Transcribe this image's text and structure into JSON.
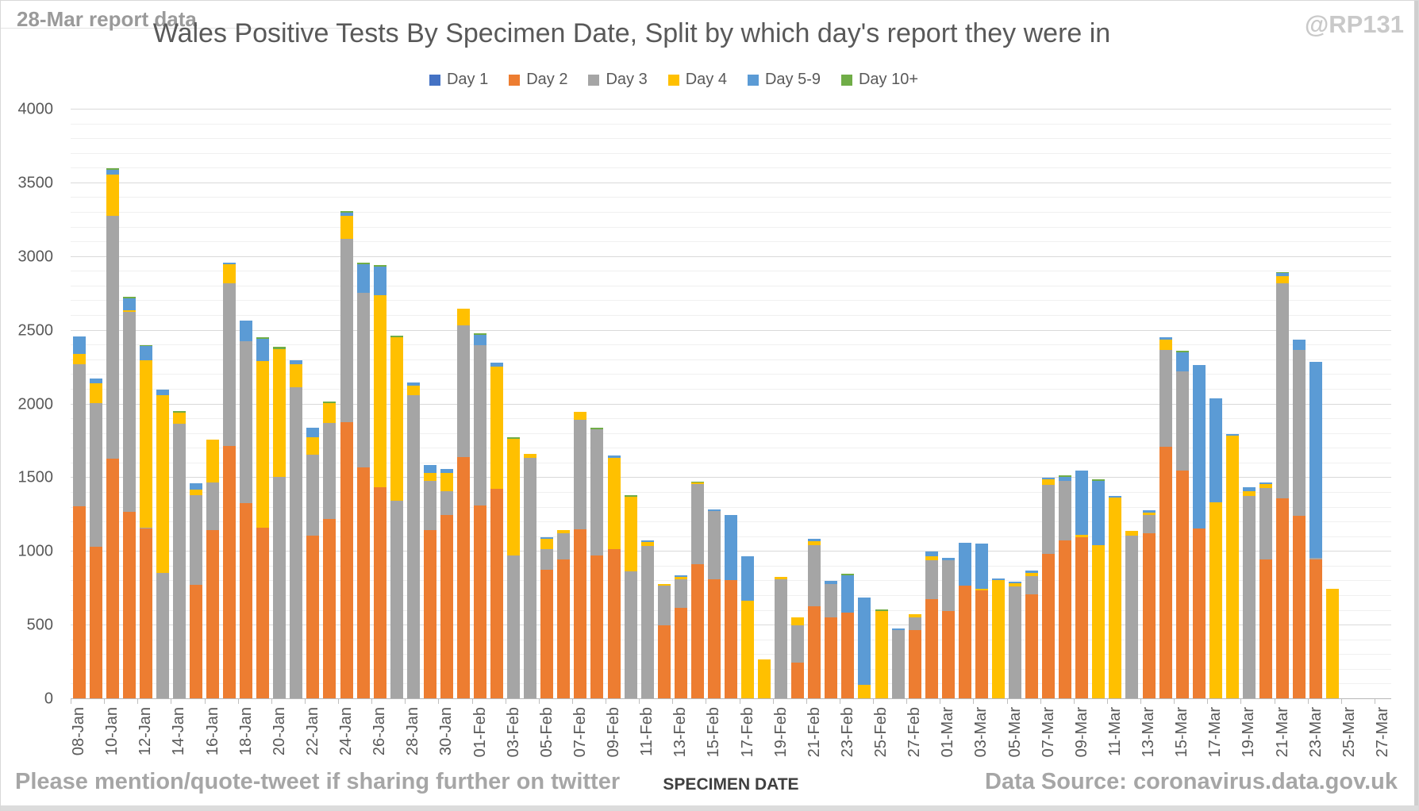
{
  "texts": {
    "report_note": "28-Mar report data",
    "handle": "@RP131",
    "footer_left": "Please mention/quote-tweet if sharing further on twitter",
    "footer_right": "Data Source: coronavirus.data.gov.uk"
  },
  "chart_data": {
    "type": "bar",
    "stacked": true,
    "title": "Wales Positive Tests By Specimen Date, Split by which day's report they were in",
    "xlabel": "SPECIMEN DATE",
    "ylabel": "",
    "ylim": [
      0,
      4000
    ],
    "ytick_step": 500,
    "minor_grid_step": 100,
    "grid": true,
    "legend_position": "top",
    "x_label_every": 2,
    "categories": [
      "08-Jan",
      "09-Jan",
      "10-Jan",
      "11-Jan",
      "12-Jan",
      "13-Jan",
      "14-Jan",
      "15-Jan",
      "16-Jan",
      "17-Jan",
      "18-Jan",
      "19-Jan",
      "20-Jan",
      "21-Jan",
      "22-Jan",
      "23-Jan",
      "24-Jan",
      "25-Jan",
      "26-Jan",
      "27-Jan",
      "28-Jan",
      "29-Jan",
      "30-Jan",
      "31-Jan",
      "01-Feb",
      "02-Feb",
      "03-Feb",
      "04-Feb",
      "05-Feb",
      "06-Feb",
      "07-Feb",
      "08-Feb",
      "09-Feb",
      "10-Feb",
      "11-Feb",
      "12-Feb",
      "13-Feb",
      "14-Feb",
      "15-Feb",
      "16-Feb",
      "17-Feb",
      "18-Feb",
      "19-Feb",
      "20-Feb",
      "21-Feb",
      "22-Feb",
      "23-Feb",
      "24-Feb",
      "25-Feb",
      "26-Feb",
      "27-Feb",
      "28-Feb",
      "01-Mar",
      "02-Mar",
      "03-Mar",
      "04-Mar",
      "05-Mar",
      "06-Mar",
      "07-Mar",
      "08-Mar",
      "09-Mar",
      "10-Mar",
      "11-Mar",
      "12-Mar",
      "13-Mar",
      "14-Mar",
      "15-Mar",
      "16-Mar",
      "17-Mar",
      "18-Mar",
      "19-Mar",
      "20-Mar",
      "21-Mar",
      "22-Mar",
      "23-Mar",
      "24-Mar",
      "25-Mar",
      "26-Mar",
      "27-Mar"
    ],
    "series": [
      {
        "name": "Day 1",
        "color": "#4472C4",
        "values": [
          0,
          0,
          0,
          0,
          0,
          0,
          0,
          0,
          0,
          0,
          0,
          0,
          0,
          0,
          0,
          0,
          0,
          0,
          0,
          0,
          0,
          0,
          0,
          0,
          0,
          0,
          0,
          0,
          0,
          0,
          0,
          0,
          0,
          0,
          0,
          0,
          0,
          0,
          0,
          0,
          0,
          0,
          0,
          0,
          0,
          0,
          0,
          0,
          0,
          0,
          0,
          0,
          0,
          0,
          0,
          0,
          0,
          0,
          0,
          0,
          0,
          0,
          0,
          0,
          0,
          0,
          0,
          0,
          0,
          0,
          0,
          0,
          0,
          0,
          0,
          0,
          0,
          0,
          0
        ]
      },
      {
        "name": "Day 2",
        "color": "#ED7D31",
        "values": [
          1310,
          1035,
          1630,
          1270,
          1155,
          0,
          0,
          775,
          1145,
          1720,
          1330,
          1165,
          0,
          0,
          1110,
          1220,
          1880,
          1570,
          1440,
          0,
          0,
          1145,
          1250,
          1640,
          1315,
          1425,
          0,
          0,
          880,
          945,
          1150,
          975,
          1020,
          0,
          0,
          500,
          620,
          915,
          815,
          810,
          0,
          0,
          0,
          250,
          630,
          555,
          585,
          0,
          0,
          0,
          470,
          680,
          595,
          770,
          735,
          0,
          0,
          710,
          985,
          1075,
          1100,
          0,
          0,
          0,
          1125,
          1710,
          1550,
          1155,
          0,
          0,
          0,
          950,
          1360,
          1245,
          950,
          0,
          0,
          0,
          0
        ]
      },
      {
        "name": "Day 3",
        "color": "#A5A5A5",
        "values": [
          960,
          975,
          1650,
          1360,
          10,
          855,
          1870,
          610,
          325,
          1100,
          1100,
          0,
          1510,
          2115,
          550,
          655,
          1240,
          1185,
          0,
          1345,
          2060,
          335,
          160,
          895,
          1085,
          0,
          975,
          1635,
          140,
          180,
          745,
          855,
          0,
          865,
          1040,
          270,
          195,
          545,
          460,
          0,
          0,
          0,
          815,
          250,
          415,
          225,
          0,
          0,
          0,
          470,
          85,
          260,
          345,
          0,
          0,
          0,
          765,
          125,
          470,
          405,
          0,
          0,
          0,
          1110,
          125,
          660,
          675,
          0,
          0,
          0,
          1380,
          480,
          1460,
          1125,
          10,
          0,
          0,
          0,
          0
        ]
      },
      {
        "name": "Day 4",
        "color": "#FFC000",
        "values": [
          70,
          135,
          280,
          10,
          1135,
          1205,
          75,
          35,
          290,
          130,
          0,
          1130,
          865,
          155,
          115,
          135,
          160,
          0,
          1300,
          1110,
          65,
          55,
          125,
          115,
          0,
          830,
          790,
          30,
          65,
          20,
          55,
          0,
          615,
          510,
          25,
          13,
          15,
          10,
          0,
          0,
          670,
          270,
          15,
          55,
          25,
          0,
          0,
          95,
          600,
          0,
          20,
          30,
          0,
          0,
          15,
          810,
          20,
          20,
          35,
          0,
          15,
          1045,
          1365,
          30,
          15,
          70,
          0,
          0,
          1335,
          1790,
          30,
          30,
          50,
          0,
          0,
          750,
          0,
          0,
          0
        ]
      },
      {
        "name": "Day 5-9",
        "color": "#5B9BD5",
        "values": [
          120,
          30,
          30,
          80,
          95,
          40,
          0,
          45,
          0,
          10,
          140,
          150,
          0,
          30,
          65,
          0,
          20,
          195,
          195,
          0,
          25,
          55,
          25,
          0,
          70,
          30,
          0,
          0,
          15,
          0,
          0,
          0,
          20,
          0,
          10,
          0,
          10,
          0,
          10,
          440,
          300,
          0,
          0,
          0,
          15,
          25,
          255,
          595,
          0,
          10,
          0,
          30,
          20,
          290,
          305,
          10,
          10,
          15,
          10,
          30,
          435,
          435,
          15,
          0,
          15,
          15,
          130,
          1110,
          705,
          10,
          25,
          10,
          20,
          70,
          1330,
          0,
          0,
          0,
          0
        ]
      },
      {
        "name": "Day 10+",
        "color": "#70AD47",
        "values": [
          0,
          0,
          10,
          10,
          5,
          0,
          10,
          0,
          0,
          0,
          0,
          10,
          15,
          0,
          0,
          10,
          10,
          10,
          10,
          10,
          0,
          0,
          0,
          0,
          10,
          0,
          10,
          0,
          0,
          0,
          0,
          10,
          0,
          10,
          0,
          0,
          0,
          5,
          0,
          0,
          0,
          0,
          0,
          0,
          0,
          0,
          10,
          0,
          10,
          0,
          0,
          0,
          0,
          0,
          0,
          0,
          0,
          0,
          0,
          10,
          0,
          10,
          0,
          0,
          0,
          0,
          10,
          0,
          0,
          0,
          0,
          0,
          5,
          0,
          0,
          0,
          0,
          0,
          0
        ]
      }
    ]
  }
}
